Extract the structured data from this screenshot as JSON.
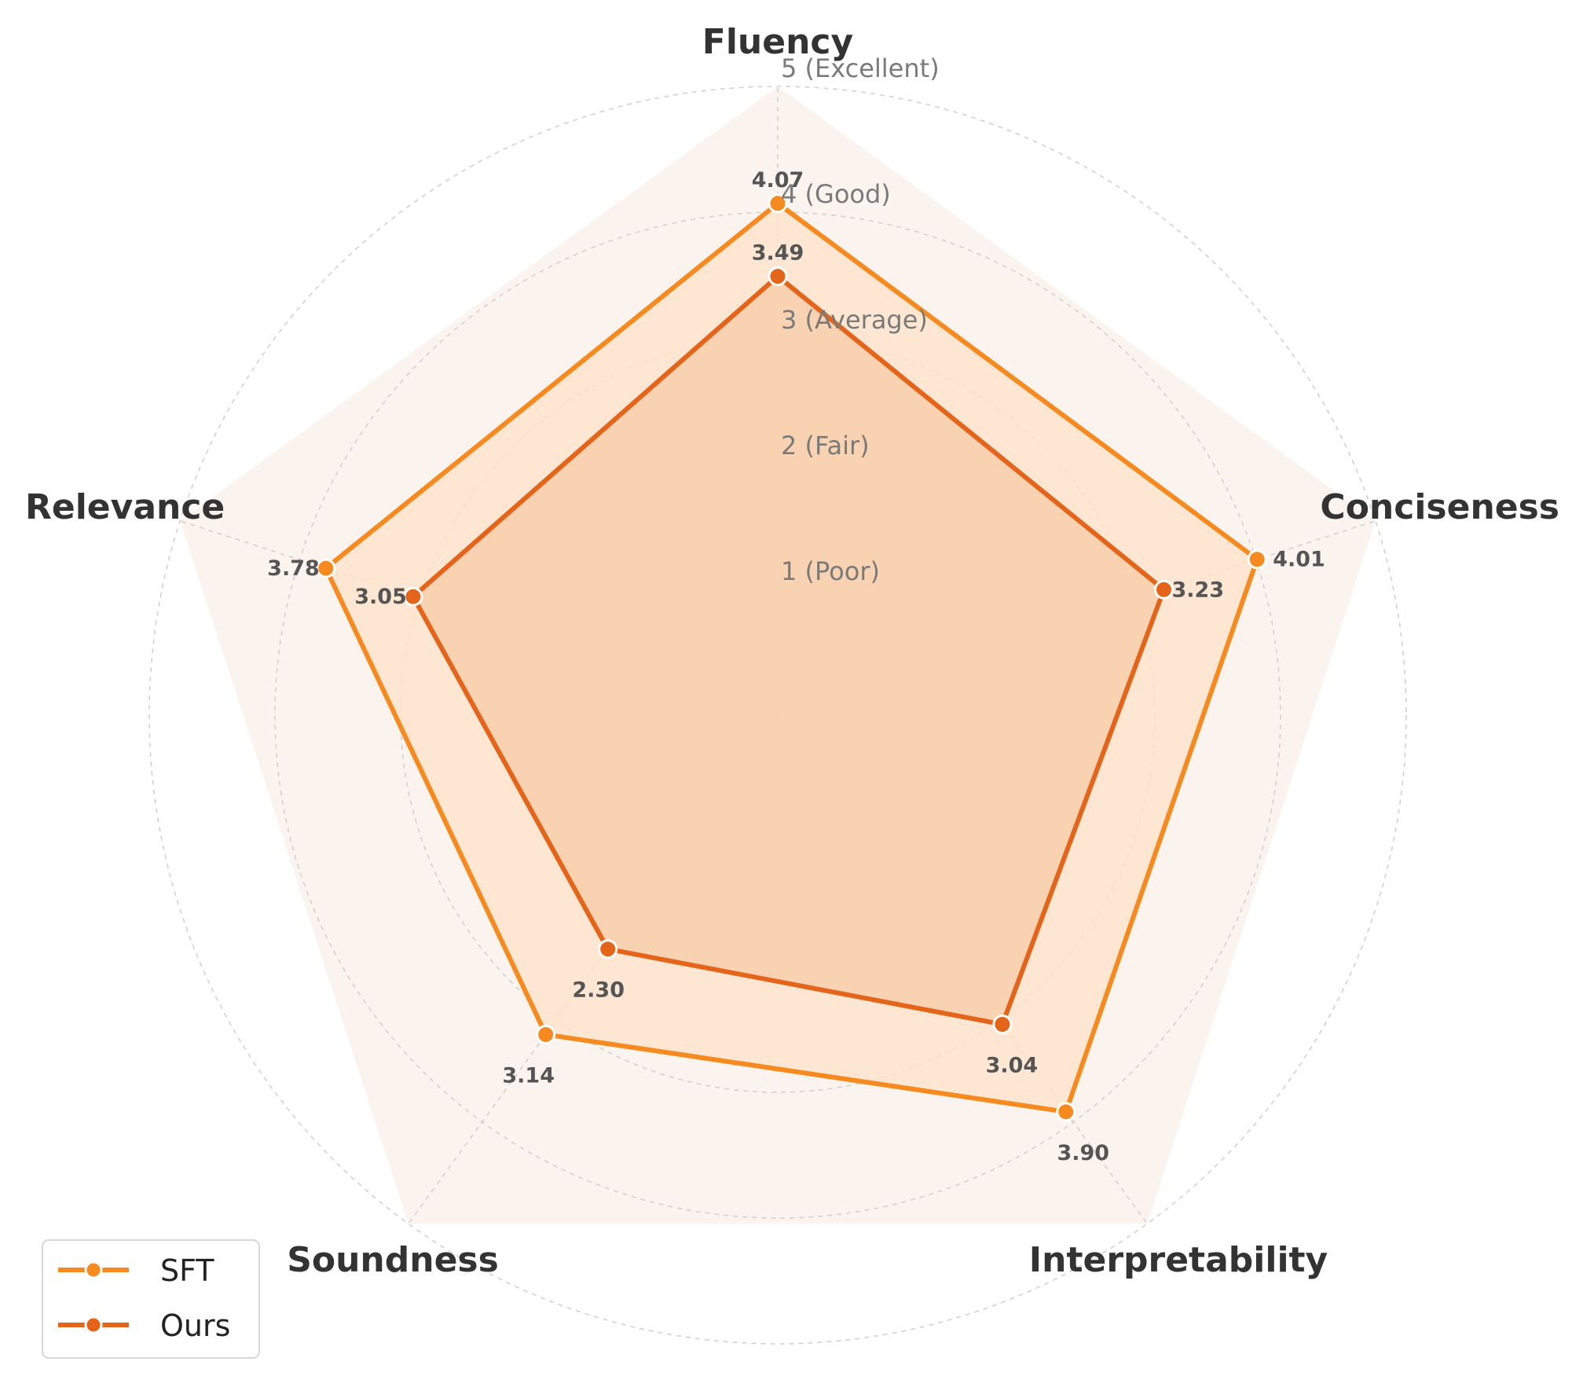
{
  "chart_data": {
    "type": "radar",
    "axes": [
      "Fluency",
      "Conciseness",
      "Interpretability",
      "Soundness",
      "Relevance"
    ],
    "rlim": [
      0,
      5
    ],
    "ring_labels": [
      "1 (Poor)",
      "2 (Fair)",
      "3 (Average)",
      "4 (Good)",
      "5 (Excellent)"
    ],
    "grid": true,
    "legend_position": "bottom-left",
    "series": [
      {
        "name": "SFT",
        "values": [
          4.07,
          4.01,
          3.9,
          3.14,
          3.78
        ],
        "labels": [
          "4.07",
          "4.01",
          "3.90",
          "3.14",
          "3.78"
        ],
        "color": "#F68A1E"
      },
      {
        "name": "Ours",
        "values": [
          3.49,
          3.23,
          3.04,
          2.3,
          3.05
        ],
        "labels": [
          "3.49",
          "3.23",
          "3.04",
          "2.30",
          "3.05"
        ],
        "color": "#E4651A"
      }
    ],
    "colors": {
      "background_pentagon": "#FBF4EE",
      "sft_fill": "#FDE4CC",
      "ours_fill": "#F7CBA7",
      "grid": "#CFCFCF"
    }
  }
}
